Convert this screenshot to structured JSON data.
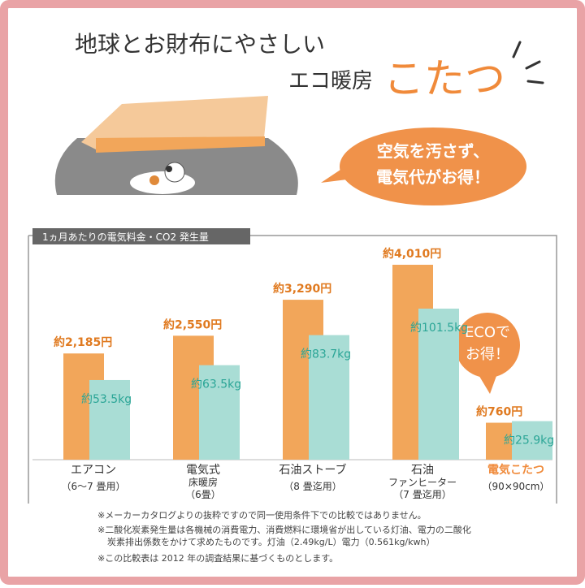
{
  "header": {
    "line1": "地球とお財布にやさしい",
    "line2": "エコ暖房",
    "highlight": "こたつ"
  },
  "bubble": {
    "lines": [
      "空気を汚さず、",
      "電気代がお得！"
    ]
  },
  "eco_bubble": {
    "lines": [
      "ECOで",
      "お得！"
    ]
  },
  "chart_data": {
    "type": "bar",
    "title": "1ヵ月あたりの電気料金・CO2 発生量",
    "categories": [
      [
        "エアコン",
        "（6～7 畳用）"
      ],
      [
        "電気式",
        "床暖房",
        "（6畳）"
      ],
      [
        "石油ストーブ",
        "（8 畳迄用）"
      ],
      [
        "石油",
        "ファンヒーター",
        "（7 畳迄用）"
      ],
      [
        "電気こたつ",
        "（90×90cm）"
      ]
    ],
    "series": [
      {
        "name": "電気料金",
        "color": "#f2a65a",
        "values": [
          2185,
          2550,
          3290,
          4010,
          760
        ],
        "value_labels": [
          "約2,185円",
          "約2,550円",
          "約3,290円",
          "約4,010円",
          "約760円"
        ]
      },
      {
        "name": "CO2 発生量",
        "color": "#a9ddd5",
        "values": [
          53.5,
          63.5,
          83.7,
          101.5,
          25.9
        ],
        "value_labels": [
          "約53.5kg",
          "約63.5kg",
          "約83.7kg",
          "約101.5kg",
          "約25.9kg"
        ]
      }
    ]
  },
  "notes": [
    "※メーカーカタログよりの抜粋ですので同一使用条件下での比較ではありません。",
    "※二酸化炭素発生量は各機械の消費電力、消費燃料に環境省が出している灯油、電力の二酸化",
    "炭素排出係数をかけて求めたものです。灯油（2.49kg/L）電力（0.561kg/kwh）",
    "※この比較表は 2012 年の調査結果に基づくものとします。"
  ]
}
